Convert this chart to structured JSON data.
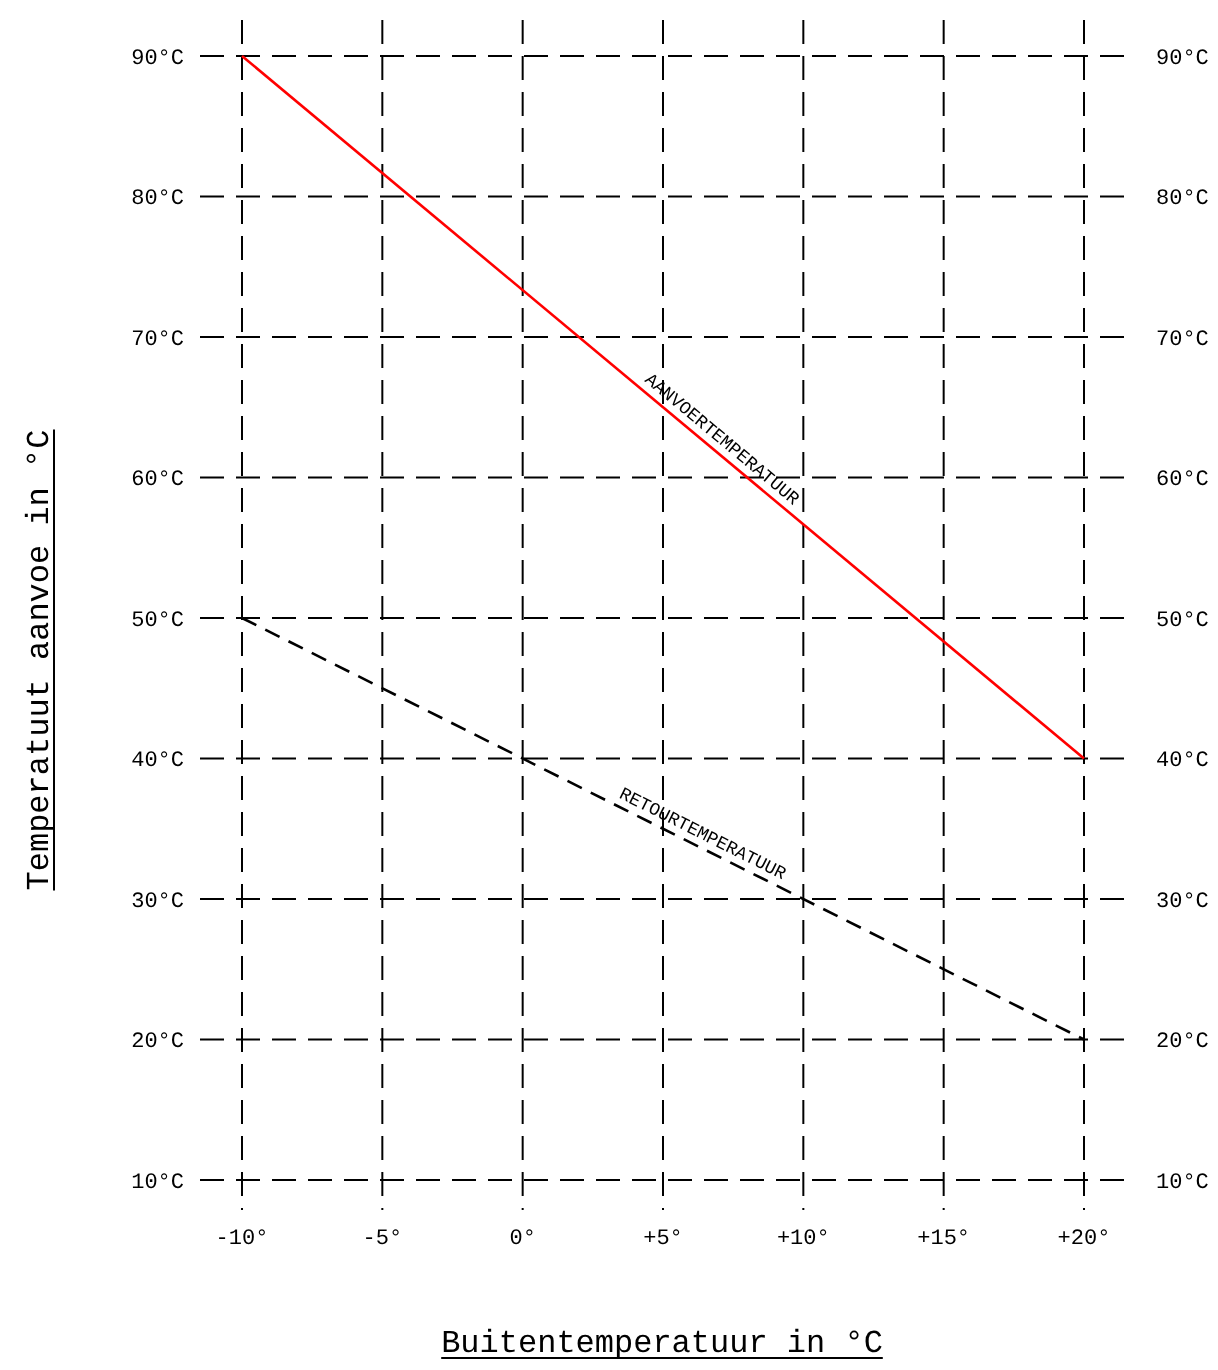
{
  "chart_data": {
    "type": "line",
    "xlabel": "Buitentemperatuur in °C",
    "ylabel": "Temperatuut aanvoe in °C",
    "x": [
      -10,
      20
    ],
    "series": [
      {
        "name": "AANVOERTEMPERATUUR",
        "color": "#ff0000",
        "values": [
          90,
          40
        ],
        "line_style": "solid"
      },
      {
        "name": "RETOURTEMPERATUUR",
        "color": "#000000",
        "values": [
          50,
          20
        ],
        "line_style": "dashed"
      }
    ],
    "xlim": [
      -10,
      20
    ],
    "xticks": [
      {
        "value": -10,
        "label": "-10°"
      },
      {
        "value": -5,
        "label": "-5°"
      },
      {
        "value": 0,
        "label": "0°"
      },
      {
        "value": 5,
        "label": "+5°"
      },
      {
        "value": 10,
        "label": "+10°"
      },
      {
        "value": 15,
        "label": "+15°"
      },
      {
        "value": 20,
        "label": "+20°"
      }
    ],
    "ylim": [
      10,
      90
    ],
    "yticks": [
      {
        "value": 10,
        "label": "10°C"
      },
      {
        "value": 20,
        "label": "20°C"
      },
      {
        "value": 30,
        "label": "30°C"
      },
      {
        "value": 40,
        "label": "40°C"
      },
      {
        "value": 50,
        "label": "50°C"
      },
      {
        "value": 60,
        "label": "60°C"
      },
      {
        "value": 70,
        "label": "70°C"
      },
      {
        "value": 80,
        "label": "80°C"
      },
      {
        "value": 90,
        "label": "90°C"
      }
    ],
    "y2lim": [
      10,
      90
    ],
    "y2ticks": [
      {
        "value": 10,
        "label": "10°C"
      },
      {
        "value": 20,
        "label": "20°C"
      },
      {
        "value": 30,
        "label": "30°C"
      },
      {
        "value": 40,
        "label": "40°C"
      },
      {
        "value": 50,
        "label": "50°C"
      },
      {
        "value": 60,
        "label": "60°C"
      },
      {
        "value": 70,
        "label": "70°C"
      },
      {
        "value": 80,
        "label": "80°C"
      },
      {
        "value": 90,
        "label": "90°C"
      }
    ],
    "grid": true
  }
}
